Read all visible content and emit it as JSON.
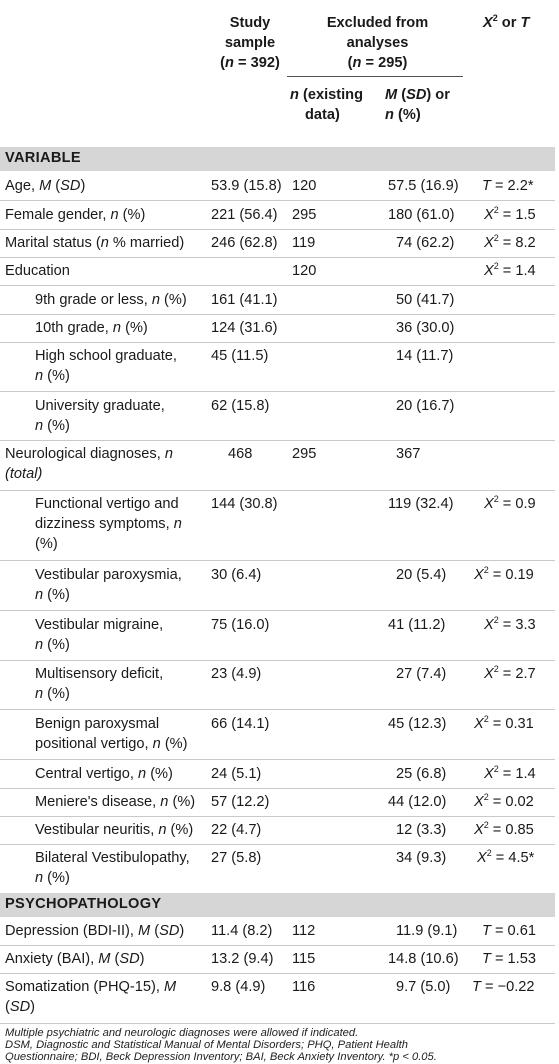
{
  "header": {
    "study_sample_line1": "Study",
    "study_sample_line2": "sample",
    "study_sample_n": "(n = 392)",
    "excluded_line1": "Excluded from",
    "excluded_line2": "analyses",
    "excluded_n": "(n = 295)",
    "stat_label": "X2 or T",
    "sub_n_line1": "n (existing",
    "sub_n_line2": "data)",
    "sub_m_line1": "M (SD) or",
    "sub_m_line2": "n (%)"
  },
  "sections": {
    "variable": "VARIABLE",
    "psychopathology": "PSYCHOPATHOLOGY"
  },
  "rows": {
    "age": {
      "label": "Age, M (SD)",
      "study": "53.9 (15.8)",
      "n": "120",
      "excl": "57.5 (16.9)",
      "stat": "T = 2.2*"
    },
    "female": {
      "label": "Female gender, n (%)",
      "study": "221 (56.4)",
      "n": "295",
      "excl": "180 (61.0)",
      "stat": "X2 = 1.5"
    },
    "marital": {
      "label": "Marital status (n % married)",
      "study": "246 (62.8)",
      "n": "119",
      "excl": "74 (62.2)",
      "stat": "X2 = 8.2"
    },
    "education": {
      "label": "Education",
      "study": "",
      "n": "120",
      "excl": "",
      "stat": "X2 = 1.4"
    },
    "grade9": {
      "label": "9th grade or less, n (%)",
      "study": "161 (41.1)",
      "n": "",
      "excl": "50 (41.7)",
      "stat": ""
    },
    "grade10": {
      "label": "10th grade, n (%)",
      "study": "124 (31.6)",
      "n": "",
      "excl": "36 (30.0)",
      "stat": ""
    },
    "hs": {
      "label1": "High school graduate,",
      "label2": "n (%)",
      "study": "45 (11.5)",
      "n": "",
      "excl": "14 (11.7)",
      "stat": ""
    },
    "univ": {
      "label1": "University graduate,",
      "label2": "n (%)",
      "study": "62 (15.8)",
      "n": "",
      "excl": "20 (16.7)",
      "stat": ""
    },
    "neuro": {
      "label1": "Neurological diagnoses, n",
      "label2": "(total)",
      "study": "468",
      "n": "295",
      "excl": "367",
      "stat": ""
    },
    "functional": {
      "label1": "Functional vertigo and",
      "label2": "dizziness symptoms, n",
      "label3": "(%)",
      "study": "144 (30.8)",
      "n": "",
      "excl": "119 (32.4)",
      "stat": "X2 = 0.9"
    },
    "paroxysmia": {
      "label1": "Vestibular paroxysmia,",
      "label2": "n (%)",
      "study": "30 (6.4)",
      "n": "",
      "excl": "20 (5.4)",
      "stat": "X2 = 0.19"
    },
    "migraine": {
      "label1": "Vestibular migraine,",
      "label2": "n (%)",
      "study": "75 (16.0)",
      "n": "",
      "excl": "41 (11.2)",
      "stat": "X2 = 3.3"
    },
    "multisensory": {
      "label1": "Multisensory deficit,",
      "label2": "n (%)",
      "study": "23 (4.9)",
      "n": "",
      "excl": "27 (7.4)",
      "stat": "X2 = 2.7"
    },
    "bppv": {
      "label1": "Benign paroxysmal",
      "label2": "positional vertigo, n (%)",
      "study": "66 (14.1)",
      "n": "",
      "excl": "45 (12.3)",
      "stat": "X2 = 0.31"
    },
    "central": {
      "label": "Central vertigo, n (%)",
      "study": "24 (5.1)",
      "n": "",
      "excl": "25 (6.8)",
      "stat": "X2 = 1.4"
    },
    "meniere": {
      "label": "Meniere's disease, n (%)",
      "study": "57 (12.2)",
      "n": "",
      "excl": "44 (12.0)",
      "stat": "X2 = 0.02"
    },
    "neuritis": {
      "label": "Vestibular neuritis, n (%)",
      "study": "22 (4.7)",
      "n": "",
      "excl": "12 (3.3)",
      "stat": "X2 = 0.85"
    },
    "bilateral": {
      "label1": "Bilateral Vestibulopathy,",
      "label2": "n (%)",
      "study": "27 (5.8)",
      "n": "",
      "excl": "34 (9.3)",
      "stat": "X2 = 4.5*"
    },
    "depression": {
      "label": "Depression (BDI-II), M (SD)",
      "study": "11.4 (8.2)",
      "n": "112",
      "excl": "11.9 (9.1)",
      "stat": "T = 0.61"
    },
    "anxiety": {
      "label": "Anxiety (BAI), M (SD)",
      "study": "13.2 (9.4)",
      "n": "115",
      "excl": "14.8 (10.6)",
      "stat": "T = 1.53"
    },
    "somatization": {
      "label1": "Somatization (PHQ-15), M",
      "label2": "(SD)",
      "study": "9.8 (4.9)",
      "n": "116",
      "excl": "9.7 (5.0)",
      "stat": "T = −0.22"
    }
  },
  "footnotes": {
    "line1": "Multiple psychiatric and neurologic diagnoses were allowed if indicated.",
    "line2": "DSM, Diagnostic and Statistical Manual of Mental Disorders; PHQ, Patient Health",
    "line3": "Questionnaire; BDI, Beck Depression Inventory; BAI, Beck Anxiety Inventory. *p < 0.05."
  }
}
